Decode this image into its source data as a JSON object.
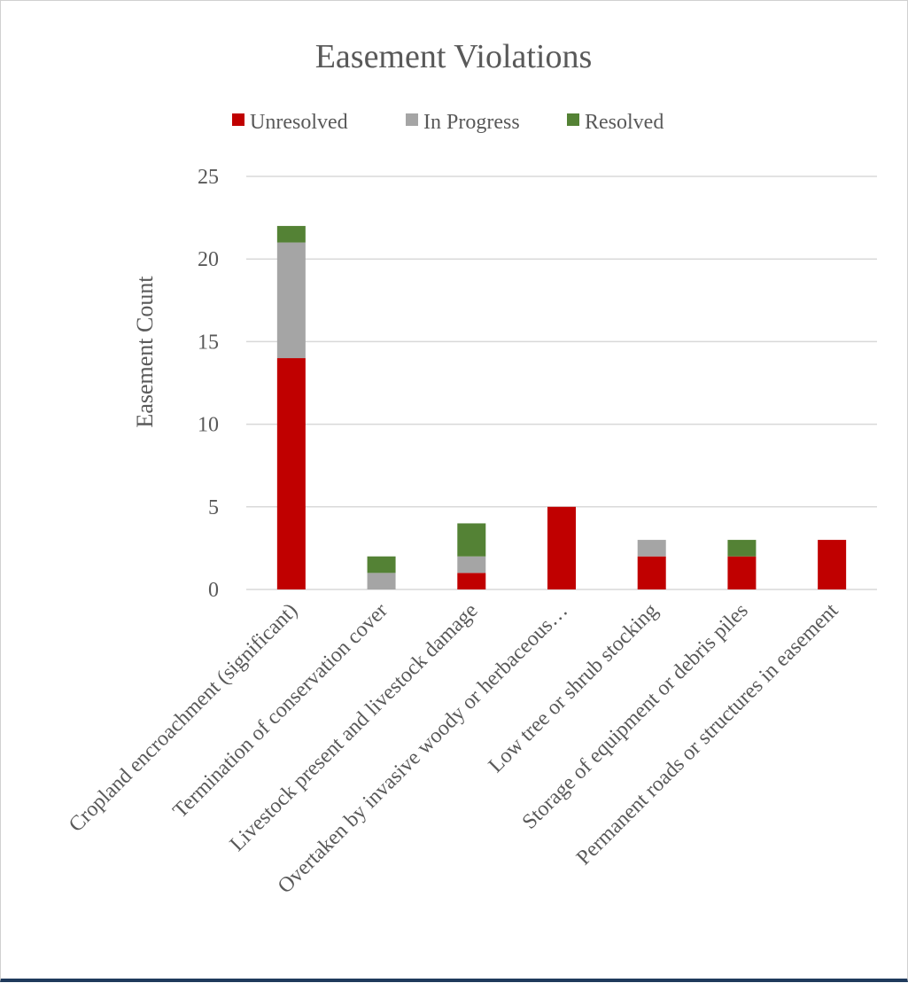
{
  "chart_data": {
    "type": "bar",
    "stacked": true,
    "title": "Easement Violations",
    "ylabel": "Easement Count",
    "xlabel": "",
    "ylim": [
      0,
      25
    ],
    "yticks": [
      0,
      5,
      10,
      15,
      20,
      25
    ],
    "grid": true,
    "legend_position": "top",
    "categories": [
      "Cropland encroachment (significant)",
      "Termination of conservation cover",
      "Livestock present and livestock damage",
      "Overtaken by invasive woody or herbaceous…",
      "Low tree or shrub stocking",
      "Storage of equipment or debris piles",
      "Permanent roads or structures in easement"
    ],
    "series": [
      {
        "name": "Unresolved",
        "color": "#c00000",
        "values": [
          14,
          0,
          1,
          5,
          2,
          2,
          3
        ]
      },
      {
        "name": "In Progress",
        "color": "#a5a5a5",
        "values": [
          7,
          1,
          1,
          0,
          1,
          0,
          0
        ]
      },
      {
        "name": "Resolved",
        "color": "#548235",
        "values": [
          1,
          1,
          2,
          0,
          0,
          1,
          0
        ]
      }
    ]
  },
  "colors": {
    "gridline": "#d9d9d9",
    "text": "#595959",
    "frame_bottom": "#1f3a5c"
  }
}
